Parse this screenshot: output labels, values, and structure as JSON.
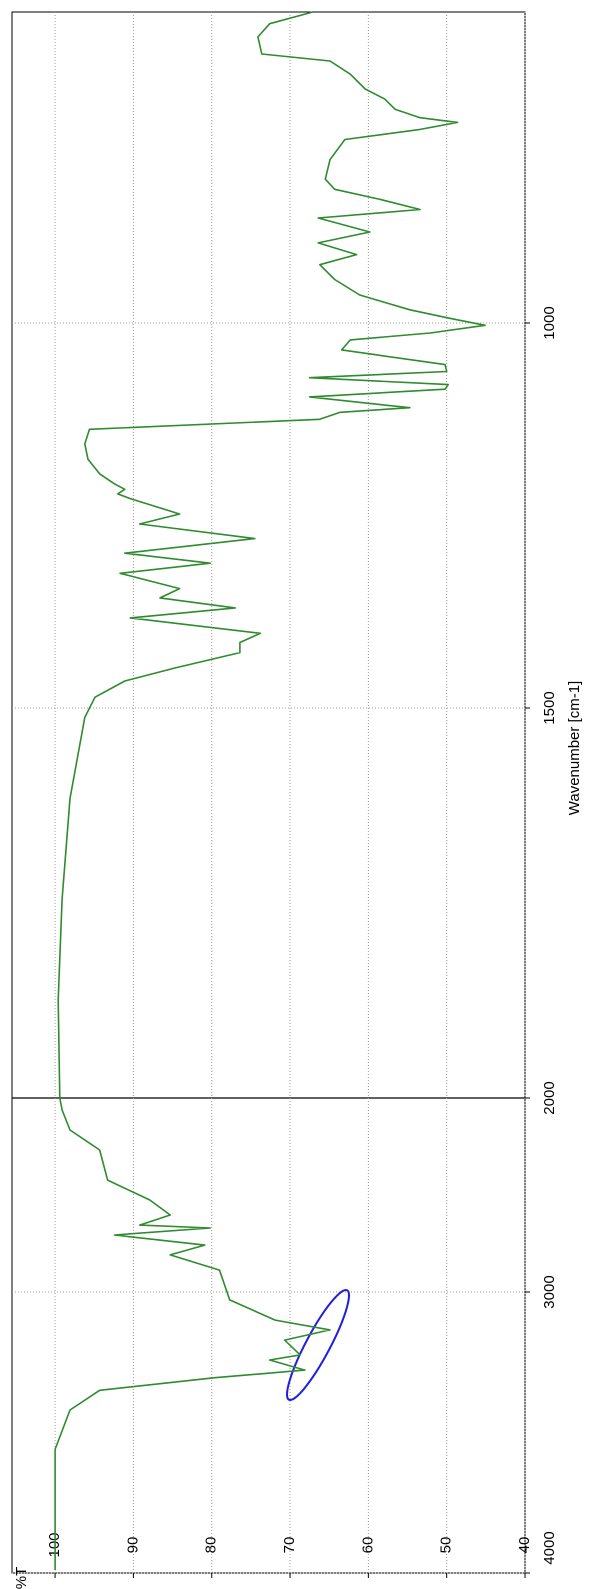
{
  "chart_data": {
    "type": "line",
    "x_label": "Wavenumber [cm-1]",
    "y_label": "%T",
    "xlim": [
      4000,
      600
    ],
    "xticks": [
      4000,
      3000,
      2000,
      1500,
      1000
    ],
    "ylim": [
      40,
      105.5
    ],
    "yticks": [
      40,
      50,
      60,
      70,
      80,
      90,
      100
    ],
    "grid": true,
    "x": [
      3990,
      3560,
      3420,
      3350,
      3305,
      3278,
      3242,
      3224,
      3171,
      3135,
      3100,
      3028,
      2887,
      2809,
      2758,
      2706,
      2670,
      2655,
      2603,
      2526,
      2423,
      2268,
      2165,
      2062,
      2000,
      1874,
      1745,
      1616,
      1512,
      1486,
      1465,
      1448,
      1428,
      1415,
      1403,
      1383,
      1370,
      1357,
      1345,
      1325,
      1312,
      1299,
      1280,
      1261,
      1248,
      1228,
      1222,
      1216,
      1209,
      1196,
      1177,
      1157,
      1138,
      1125,
      1116,
      1110,
      1106,
      1096,
      1086,
      1080,
      1071,
      1063,
      1054,
      1041,
      1035,
      1022,
      1013,
      1003,
      994,
      983,
      964,
      944,
      925,
      912,
      897,
      883,
      865,
      854,
      841,
      828,
      815,
      790,
      764,
      751,
      742,
      736,
      725,
      712,
      699,
      680,
      663,
      654,
      632,
      615,
      600
    ],
    "series": [
      {
        "name": "%T",
        "color": "#2e8b2e",
        "values": [
          100.0,
          100.0,
          98.1,
          94.3,
          79.6,
          68.1,
          72.6,
          68.7,
          70.7,
          64.9,
          71.9,
          77.7,
          79.0,
          85.3,
          80.9,
          92.4,
          80.2,
          89.2,
          85.3,
          87.9,
          93.3,
          94.3,
          98.1,
          99.1,
          99.4,
          99.6,
          99.1,
          98.1,
          96.2,
          94.9,
          91.1,
          84.7,
          76.4,
          76.4,
          73.8,
          90.4,
          77.0,
          86.6,
          84.1,
          91.7,
          80.2,
          91.1,
          74.5,
          89.2,
          84.1,
          90.4,
          92.0,
          91.1,
          92.4,
          94.3,
          95.8,
          96.2,
          95.6,
          66.2,
          63.6,
          54.7,
          58.5,
          67.5,
          50.2,
          49.8,
          67.5,
          50.0,
          50.2,
          59.2,
          63.4,
          62.3,
          52.1,
          45.1,
          49.6,
          54.7,
          61.1,
          64.3,
          66.2,
          61.5,
          66.4,
          59.8,
          66.4,
          53.4,
          58.5,
          64.3,
          65.5,
          64.9,
          63.0,
          53.4,
          48.6,
          53.4,
          56.6,
          57.9,
          60.4,
          62.3,
          64.9,
          73.6,
          74.1,
          72.6,
          67.1
        ]
      }
    ]
  }
}
